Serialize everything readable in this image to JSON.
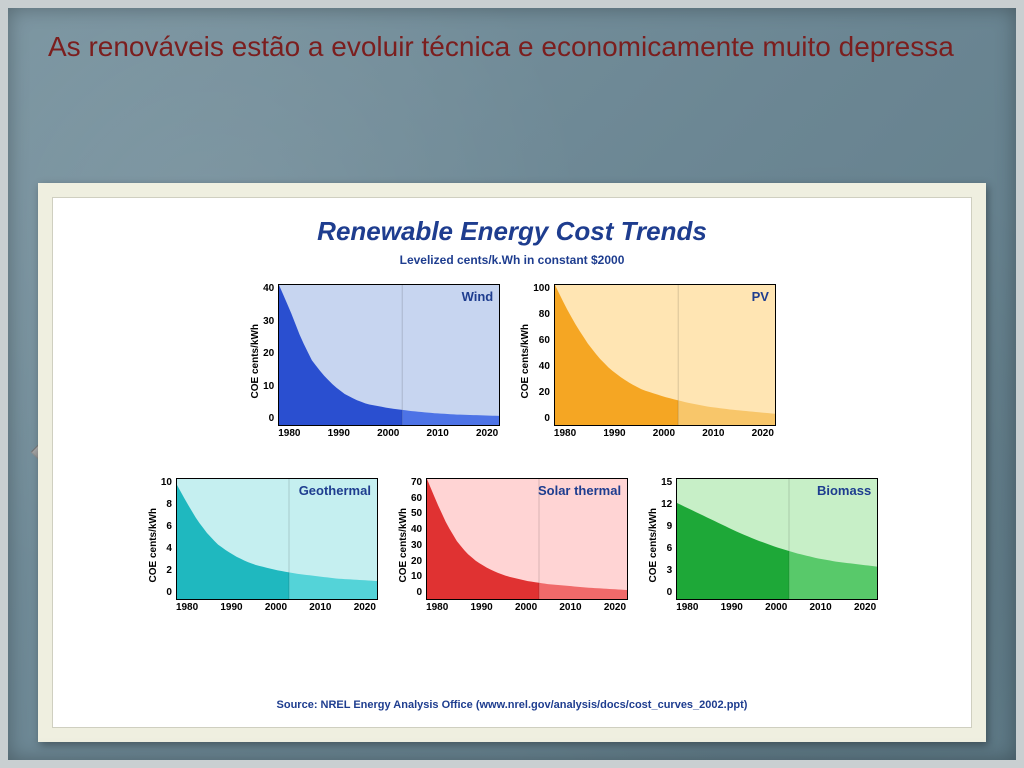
{
  "slide": {
    "heading": "As renováveis estão a evoluir técnica e economicamente muito depressa",
    "heading_color": "#7b1e1e",
    "heading_fontsize": 28,
    "background_gradient": [
      "#7a94a0",
      "#6b8693",
      "#5f7b88"
    ],
    "frame_color": "#c9cfd1",
    "card_bg": "#efefe0"
  },
  "chart": {
    "title": "Renewable Energy Cost Trends",
    "subtitle": "Levelized cents/k.Wh in constant $2000",
    "title_color": "#1e3d8f",
    "title_fontsize": 26,
    "subtitle_fontsize": 12,
    "ylabel": "COE cents/kWh",
    "xlabel_ticks": [
      "1980",
      "1990",
      "2000",
      "2010",
      "2020"
    ],
    "axis_font_size": 10,
    "source": "Source: NREL Energy Analysis Office (www.nrel.gov/analysis/docs/cost_curves_2002.ppt)",
    "row1_plot_w": 220,
    "row1_plot_h": 140,
    "row2_plot_w": 200,
    "row2_plot_h": 120,
    "panels": {
      "wind": {
        "label": "Wind",
        "row": 1,
        "ymax": 40,
        "ytick_step": 10,
        "yticks": [
          "40",
          "30",
          "20",
          "10",
          "0"
        ],
        "bg_light": "#c7d5f0",
        "fill_dark": "#2a4fd0",
        "fill_mid": "#4d73e6",
        "curve_norm": [
          [
            0,
            1.0
          ],
          [
            0.05,
            0.82
          ],
          [
            0.1,
            0.62
          ],
          [
            0.15,
            0.46
          ],
          [
            0.2,
            0.36
          ],
          [
            0.25,
            0.28
          ],
          [
            0.3,
            0.22
          ],
          [
            0.35,
            0.18
          ],
          [
            0.4,
            0.15
          ],
          [
            0.5,
            0.12
          ],
          [
            0.6,
            0.1
          ],
          [
            0.7,
            0.085
          ],
          [
            0.8,
            0.075
          ],
          [
            0.9,
            0.07
          ],
          [
            1.0,
            0.065
          ]
        ],
        "data_cents_per_kwh": {
          "1980": 40,
          "1985": 24,
          "1990": 10,
          "1995": 7,
          "2000": 5,
          "2005": 4.5,
          "2010": 4,
          "2015": 3,
          "2020": 2.8
        },
        "split_at_x": 0.56
      },
      "pv": {
        "label": "PV",
        "row": 1,
        "ymax": 100,
        "ytick_step": 20,
        "yticks": [
          "100",
          "80",
          "60",
          "40",
          "20",
          "0"
        ],
        "bg_light": "#ffe5b3",
        "fill_dark": "#f5a623",
        "fill_mid": "#f8c66a",
        "curve_norm": [
          [
            0,
            1.0
          ],
          [
            0.05,
            0.84
          ],
          [
            0.1,
            0.7
          ],
          [
            0.15,
            0.58
          ],
          [
            0.2,
            0.48
          ],
          [
            0.25,
            0.4
          ],
          [
            0.3,
            0.34
          ],
          [
            0.35,
            0.29
          ],
          [
            0.4,
            0.25
          ],
          [
            0.5,
            0.2
          ],
          [
            0.6,
            0.16
          ],
          [
            0.7,
            0.13
          ],
          [
            0.8,
            0.11
          ],
          [
            0.9,
            0.095
          ],
          [
            1.0,
            0.08
          ]
        ],
        "data_cents_per_kwh": {
          "1980": 100,
          "1985": 70,
          "1990": 45,
          "1995": 32,
          "2000": 22,
          "2005": 17,
          "2010": 13,
          "2015": 10,
          "2020": 8
        },
        "split_at_x": 0.56
      },
      "geothermal": {
        "label": "Geothermal",
        "row": 2,
        "ymax": 10,
        "ytick_step": 2,
        "yticks": [
          "10",
          "8",
          "6",
          "4",
          "2",
          "0"
        ],
        "bg_light": "#c5eff0",
        "fill_dark": "#1fb8bf",
        "fill_mid": "#54d3d8",
        "curve_norm": [
          [
            0,
            0.95
          ],
          [
            0.05,
            0.8
          ],
          [
            0.1,
            0.66
          ],
          [
            0.15,
            0.55
          ],
          [
            0.2,
            0.46
          ],
          [
            0.25,
            0.4
          ],
          [
            0.3,
            0.35
          ],
          [
            0.35,
            0.31
          ],
          [
            0.4,
            0.28
          ],
          [
            0.5,
            0.24
          ],
          [
            0.6,
            0.21
          ],
          [
            0.7,
            0.19
          ],
          [
            0.8,
            0.17
          ],
          [
            0.9,
            0.16
          ],
          [
            1.0,
            0.15
          ]
        ],
        "data_cents_per_kwh": {
          "1980": 9.5,
          "1985": 6.5,
          "1990": 4.5,
          "1995": 3.5,
          "2000": 2.8,
          "2005": 2.4,
          "2010": 2.0,
          "2015": 1.7,
          "2020": 1.5
        },
        "split_at_x": 0.56
      },
      "solar_thermal": {
        "label": "Solar thermal",
        "row": 2,
        "ymax": 70,
        "ytick_step": 10,
        "yticks": [
          "70",
          "60",
          "50",
          "40",
          "30",
          "20",
          "10",
          "0"
        ],
        "bg_light": "#ffd4d4",
        "fill_dark": "#e03232",
        "fill_mid": "#f06a6a",
        "curve_norm": [
          [
            0,
            1.0
          ],
          [
            0.05,
            0.8
          ],
          [
            0.1,
            0.62
          ],
          [
            0.15,
            0.48
          ],
          [
            0.2,
            0.38
          ],
          [
            0.25,
            0.31
          ],
          [
            0.3,
            0.26
          ],
          [
            0.35,
            0.22
          ],
          [
            0.4,
            0.19
          ],
          [
            0.5,
            0.15
          ],
          [
            0.6,
            0.125
          ],
          [
            0.7,
            0.11
          ],
          [
            0.8,
            0.095
          ],
          [
            0.9,
            0.085
          ],
          [
            1.0,
            0.075
          ]
        ],
        "data_cents_per_kwh": {
          "1980": 70,
          "1985": 45,
          "1990": 25,
          "1995": 16,
          "2000": 12,
          "2005": 9.5,
          "2010": 8,
          "2015": 6.5,
          "2020": 5.5
        },
        "split_at_x": 0.56
      },
      "biomass": {
        "label": "Biomass",
        "row": 2,
        "ymax": 15,
        "ytick_step": 3,
        "yticks": [
          "15",
          "12",
          "9",
          "6",
          "3",
          "0"
        ],
        "bg_light": "#c7efc7",
        "fill_dark": "#1ea838",
        "fill_mid": "#58c96a",
        "curve_norm": [
          [
            0,
            0.8
          ],
          [
            0.1,
            0.72
          ],
          [
            0.2,
            0.64
          ],
          [
            0.3,
            0.56
          ],
          [
            0.4,
            0.49
          ],
          [
            0.5,
            0.43
          ],
          [
            0.6,
            0.38
          ],
          [
            0.7,
            0.34
          ],
          [
            0.8,
            0.31
          ],
          [
            0.9,
            0.29
          ],
          [
            1.0,
            0.27
          ]
        ],
        "data_cents_per_kwh": {
          "1980": 12,
          "1985": 11,
          "1990": 9.5,
          "1995": 8,
          "2000": 7,
          "2005": 6,
          "2010": 5.2,
          "2015": 4.5,
          "2020": 4
        },
        "split_at_x": 0.56
      }
    }
  }
}
